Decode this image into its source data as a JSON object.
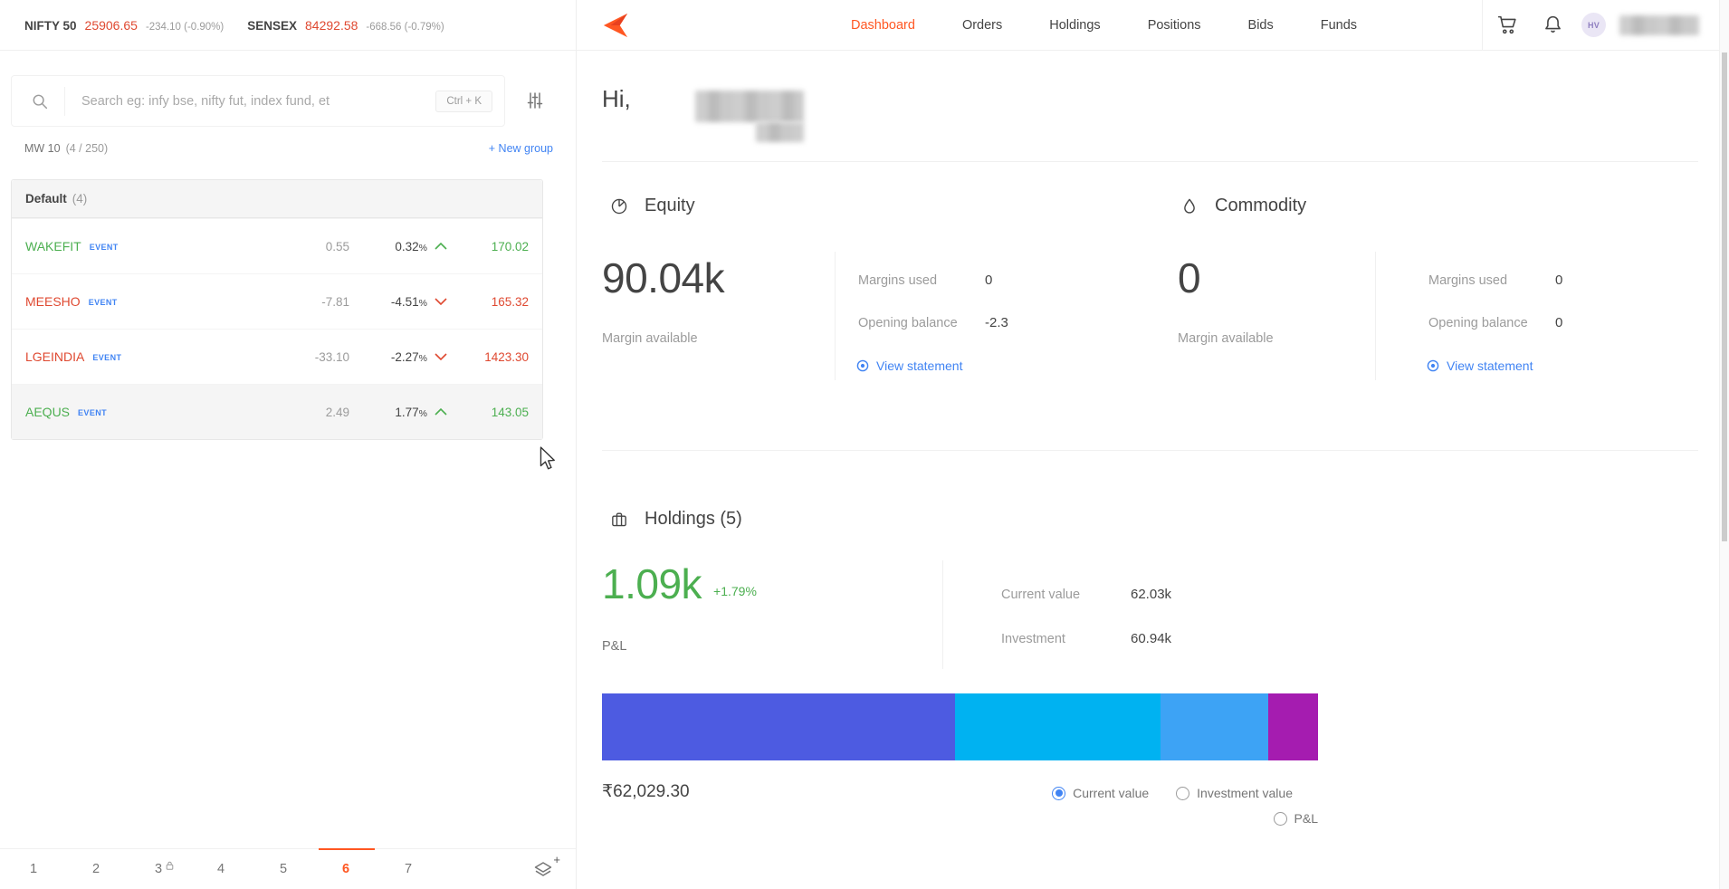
{
  "ticker": {
    "indices": [
      {
        "name": "NIFTY 50",
        "price": "25906.65",
        "change": "-234.10 (-0.90%)"
      },
      {
        "name": "SENSEX",
        "price": "84292.58",
        "change": "-668.56 (-0.79%)"
      }
    ]
  },
  "nav": {
    "items": [
      "Dashboard",
      "Orders",
      "Holdings",
      "Positions",
      "Bids",
      "Funds"
    ],
    "active": "Dashboard",
    "avatar_initials": "HV"
  },
  "sidebar": {
    "search": {
      "placeholder": "Search eg: infy bse, nifty fut, index fund, et",
      "shortcut": "Ctrl + K"
    },
    "marketwatch_label": "MW 10",
    "marketwatch_count": "(4 / 250)",
    "new_group": "+ New group",
    "group": {
      "name": "Default",
      "count": "(4)"
    },
    "percent_sign": "%",
    "rows": [
      {
        "symbol": "WAKEFIT",
        "tag": "EVENT",
        "change": "0.55",
        "pct": "0.32",
        "dir": "up",
        "ltp": "170.02",
        "selected": false
      },
      {
        "symbol": "MEESHO",
        "tag": "EVENT",
        "change": "-7.81",
        "pct": "-4.51",
        "dir": "down",
        "ltp": "165.32",
        "selected": false
      },
      {
        "symbol": "LGEINDIA",
        "tag": "EVENT",
        "change": "-33.10",
        "pct": "-2.27",
        "dir": "down",
        "ltp": "1423.30",
        "selected": false
      },
      {
        "symbol": "AEQUS",
        "tag": "EVENT",
        "change": "2.49",
        "pct": "1.77",
        "dir": "up",
        "ltp": "143.05",
        "selected": true
      }
    ],
    "pagination": {
      "pages": [
        "1",
        "2",
        "3",
        "4",
        "5",
        "6",
        "7"
      ],
      "active": "6",
      "locked_page": "3"
    }
  },
  "main": {
    "greeting": "Hi,",
    "equity": {
      "title": "Equity",
      "amount": "90.04k",
      "amount_label": "Margin available",
      "rows": [
        {
          "label": "Margins used",
          "value": "0"
        },
        {
          "label": "Opening balance",
          "value": "-2.3"
        }
      ],
      "link": "View statement"
    },
    "commodity": {
      "title": "Commodity",
      "amount": "0",
      "amount_label": "Margin available",
      "rows": [
        {
          "label": "Margins used",
          "value": "0"
        },
        {
          "label": "Opening balance",
          "value": "0"
        }
      ],
      "link": "View statement"
    },
    "holdings": {
      "title": "Holdings (5)",
      "pnl": "1.09k",
      "pnl_change": "+1.79%",
      "pnl_label": "P&L",
      "stats": [
        {
          "label": "Current value",
          "value": "62.03k"
        },
        {
          "label": "Investment",
          "value": "60.94k"
        }
      ],
      "total": "₹62,029.30",
      "options": [
        {
          "label": "Current value",
          "selected": true
        },
        {
          "label": "Investment value",
          "selected": false
        },
        {
          "label": "P&L",
          "selected": false
        }
      ],
      "allocation_bar": {
        "segments": [
          {
            "color": "#4d5be1",
            "pct": 49.3
          },
          {
            "color": "#00b2f1",
            "pct": 28.7
          },
          {
            "color": "#3da3f5",
            "pct": 15.1
          },
          {
            "color": "#a51cb0",
            "pct": 6.9
          }
        ]
      }
    }
  }
}
